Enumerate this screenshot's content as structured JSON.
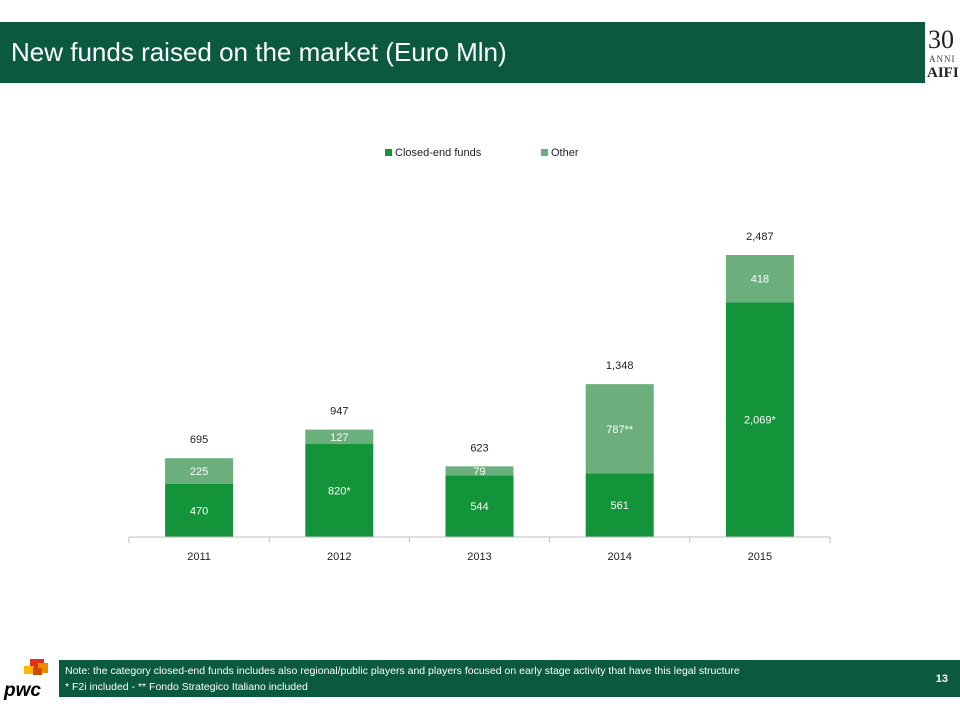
{
  "slide": {
    "title": "New funds raised on the market (Euro Mln)",
    "page_number": "13",
    "notes": [
      "Note: the category closed-end funds includes also regional/public players and players focused on early stage activity that have this legal structure",
      "* F2i included - ** Fondo Strategico Italiano included"
    ],
    "logos": {
      "aifi_top": "30",
      "aifi_sub": "ANNI",
      "aifi_name": "AIFI",
      "pwc": "pwc"
    }
  },
  "colors": {
    "header_bg": "#0b5a3f",
    "closed_end": "#13933a",
    "other": "#6aaf7c",
    "axis": "#bfbfbf"
  },
  "chart_data": {
    "type": "bar",
    "stacked": true,
    "categories": [
      "2011",
      "2012",
      "2013",
      "2014",
      "2015"
    ],
    "series": [
      {
        "name": "Closed-end funds",
        "values": [
          470,
          820,
          544,
          561,
          2069
        ],
        "labels": [
          "470",
          "820*",
          "544",
          "561",
          "2,069*"
        ]
      },
      {
        "name": "Other",
        "values": [
          225,
          127,
          79,
          787,
          418
        ],
        "labels": [
          "225",
          "127",
          "79",
          "787**",
          "418"
        ]
      }
    ],
    "totals": [
      695,
      947,
      623,
      1348,
      2487
    ],
    "total_labels": [
      "695",
      "947",
      "623",
      "1,348",
      "2,487"
    ],
    "ylim": [
      0,
      2487
    ],
    "legend_position": "top-center",
    "grid": false
  }
}
